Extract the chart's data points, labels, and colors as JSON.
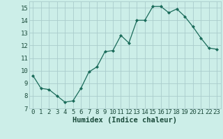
{
  "x": [
    0,
    1,
    2,
    3,
    4,
    5,
    6,
    7,
    8,
    9,
    10,
    11,
    12,
    13,
    14,
    15,
    16,
    17,
    18,
    19,
    20,
    21,
    22,
    23
  ],
  "y": [
    9.6,
    8.6,
    8.5,
    8.0,
    7.5,
    7.6,
    8.6,
    9.9,
    10.3,
    11.5,
    11.6,
    12.8,
    12.2,
    14.0,
    14.0,
    15.1,
    15.1,
    14.6,
    14.9,
    14.3,
    13.5,
    12.6,
    11.8,
    11.7
  ],
  "line_color": "#1a6b5a",
  "marker": "D",
  "marker_size": 2.0,
  "bg_color": "#cceee8",
  "grid_color": "#aacccc",
  "xlabel": "Humidex (Indice chaleur)",
  "xlim": [
    -0.5,
    23.5
  ],
  "ylim": [
    7,
    15.5
  ],
  "xticks": [
    0,
    1,
    2,
    3,
    4,
    5,
    6,
    7,
    8,
    9,
    10,
    11,
    12,
    13,
    14,
    15,
    16,
    17,
    18,
    19,
    20,
    21,
    22,
    23
  ],
  "yticks": [
    7,
    8,
    9,
    10,
    11,
    12,
    13,
    14,
    15
  ],
  "tick_fontsize": 6.5,
  "xlabel_fontsize": 7.5,
  "label_color": "#1a4a3a"
}
